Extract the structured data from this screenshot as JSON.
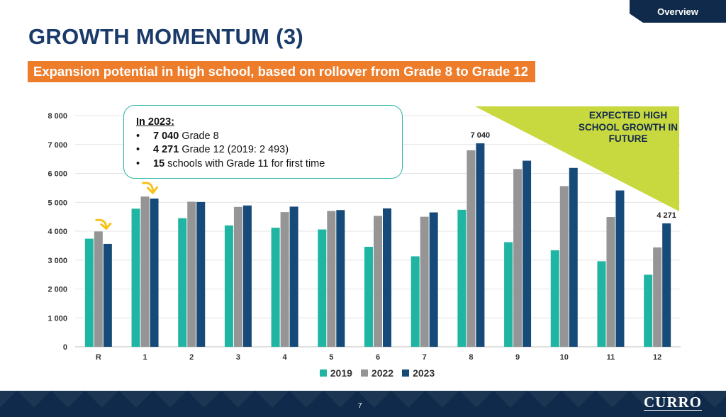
{
  "header": {
    "tab_label": "Overview",
    "title": "GROWTH MOMENTUM (3)",
    "subtitle": "Expansion potential in high school, based on rollover from Grade 8 to Grade 12"
  },
  "callout": {
    "title": "In 2023:",
    "items": [
      {
        "bold": "7 040",
        "text": " Grade 8"
      },
      {
        "bold": "4 271",
        "text": " Grade 12 (2019: 2 493)"
      },
      {
        "bold": "15",
        "text": " schools with Grade 11 for first time"
      }
    ]
  },
  "annotation": {
    "expected_text": "EXPECTED HIGH SCHOOL GROWTH IN FUTURE",
    "colors": {
      "triangle": "#c8d940",
      "arrow": "#f7c21a"
    }
  },
  "chart_data": {
    "type": "bar",
    "categories": [
      "R",
      "1",
      "2",
      "3",
      "4",
      "5",
      "6",
      "7",
      "8",
      "9",
      "10",
      "11",
      "12"
    ],
    "series": [
      {
        "name": "2019",
        "color": "#1fb5a2",
        "values": [
          3740,
          4780,
          4450,
          4200,
          4120,
          4060,
          3460,
          3130,
          4740,
          3620,
          3340,
          2960,
          2493
        ]
      },
      {
        "name": "2022",
        "color": "#959595",
        "values": [
          3990,
          5200,
          5020,
          4840,
          4660,
          4700,
          4530,
          4500,
          6800,
          6150,
          5560,
          4490,
          3440
        ]
      },
      {
        "name": "2023",
        "color": "#164a78",
        "values": [
          3560,
          5130,
          5010,
          4890,
          4850,
          4730,
          4790,
          4650,
          7040,
          6440,
          6190,
          5410,
          4271
        ]
      }
    ],
    "ylim": [
      0,
      8000
    ],
    "yticks": [
      "0",
      "1 000",
      "2 000",
      "3 000",
      "4 000",
      "5 000",
      "6 000",
      "7 000",
      "8 000"
    ],
    "data_labels": [
      {
        "series": "2023",
        "category": "8",
        "text": "7 040"
      },
      {
        "series": "2023",
        "category": "12",
        "text": "4 271"
      }
    ],
    "grid": true,
    "legend": "bottom-center"
  },
  "footer": {
    "page_number": "7",
    "brand": "CURRO"
  }
}
